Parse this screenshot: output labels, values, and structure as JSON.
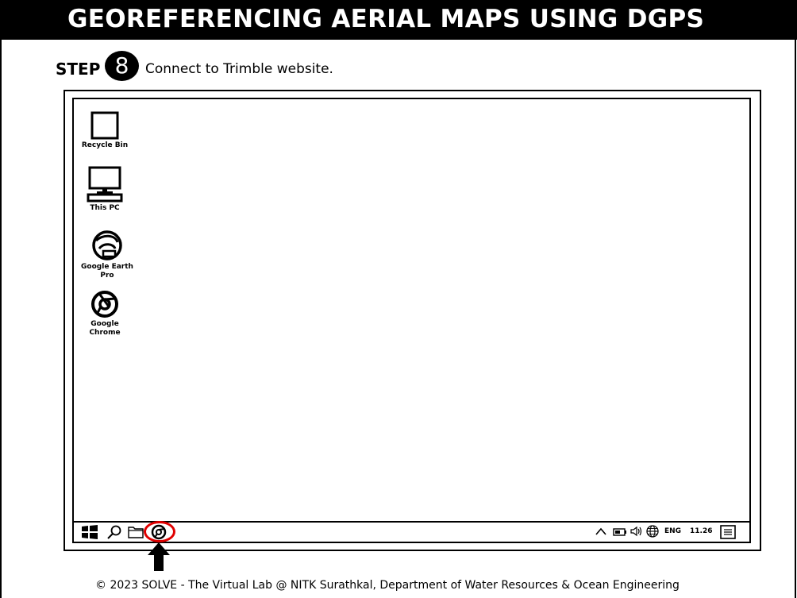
{
  "header": {
    "title": "GEOREFERENCING AERIAL MAPS USING DGPS"
  },
  "step": {
    "label": "STEP",
    "number": "8",
    "description": "Connect to Trimble website."
  },
  "desktop": {
    "icons": [
      {
        "name": "recycle-bin",
        "label": "Recycle Bin",
        "icon": "recycle-bin-icon"
      },
      {
        "name": "this-pc",
        "label": "This PC",
        "icon": "computer-icon"
      },
      {
        "name": "google-earth-pro",
        "label_line1": "Google Earth",
        "label_line2": "Pro",
        "icon": "google-earth-icon"
      },
      {
        "name": "google-chrome",
        "label_line1": "Google",
        "label_line2": "Chrome",
        "icon": "chrome-icon"
      }
    ]
  },
  "taskbar": {
    "left_items": [
      "windows-start-icon",
      "search-icon",
      "folder-icon",
      "chrome-icon"
    ],
    "tray": {
      "language": "ENG",
      "time": "11.26"
    }
  },
  "colors": {
    "highlight": "#e00000",
    "title_bg": "#000000",
    "title_text": "#ffffff"
  },
  "footer": {
    "text": "© 2023 SOLVE - The Virtual Lab @ NITK Surathkal, Department of Water Resources & Ocean Engineering"
  }
}
